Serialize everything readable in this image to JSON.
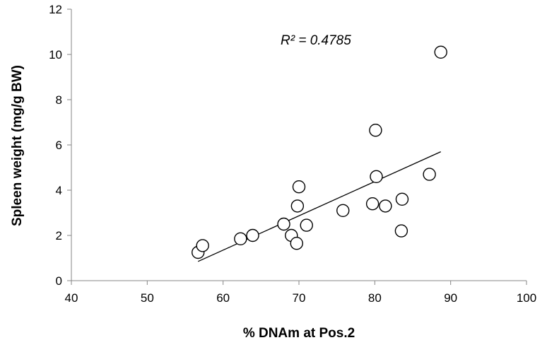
{
  "chart_data": {
    "type": "scatter",
    "title": "",
    "xlabel": "% DNAm at Pos.2",
    "ylabel": "Spleen weight (mg/g BW)",
    "xlim": [
      40,
      100
    ],
    "ylim": [
      0,
      12
    ],
    "x_ticks": [
      "40",
      "50",
      "60",
      "70",
      "80",
      "90",
      "100"
    ],
    "y_ticks": [
      "0",
      "2",
      "4",
      "6",
      "8",
      "10",
      "12"
    ],
    "grid": false,
    "legend": "none",
    "annotation": "R² = 0.4785",
    "marker": "open-circle",
    "points": [
      {
        "x": 56.7,
        "y": 1.25
      },
      {
        "x": 57.3,
        "y": 1.55
      },
      {
        "x": 62.3,
        "y": 1.85
      },
      {
        "x": 63.9,
        "y": 2.0
      },
      {
        "x": 68.0,
        "y": 2.5
      },
      {
        "x": 69.0,
        "y": 2.0
      },
      {
        "x": 69.7,
        "y": 1.65
      },
      {
        "x": 69.8,
        "y": 3.3
      },
      {
        "x": 70.0,
        "y": 4.15
      },
      {
        "x": 71.0,
        "y": 2.45
      },
      {
        "x": 75.8,
        "y": 3.1
      },
      {
        "x": 79.7,
        "y": 3.4
      },
      {
        "x": 80.1,
        "y": 6.65
      },
      {
        "x": 80.2,
        "y": 4.6
      },
      {
        "x": 81.4,
        "y": 3.3
      },
      {
        "x": 83.5,
        "y": 2.2
      },
      {
        "x": 83.6,
        "y": 3.6
      },
      {
        "x": 87.2,
        "y": 4.7
      },
      {
        "x": 88.7,
        "y": 10.1
      }
    ],
    "trendline": {
      "x": [
        56.7,
        88.7
      ],
      "y": [
        0.85,
        5.7
      ]
    }
  }
}
